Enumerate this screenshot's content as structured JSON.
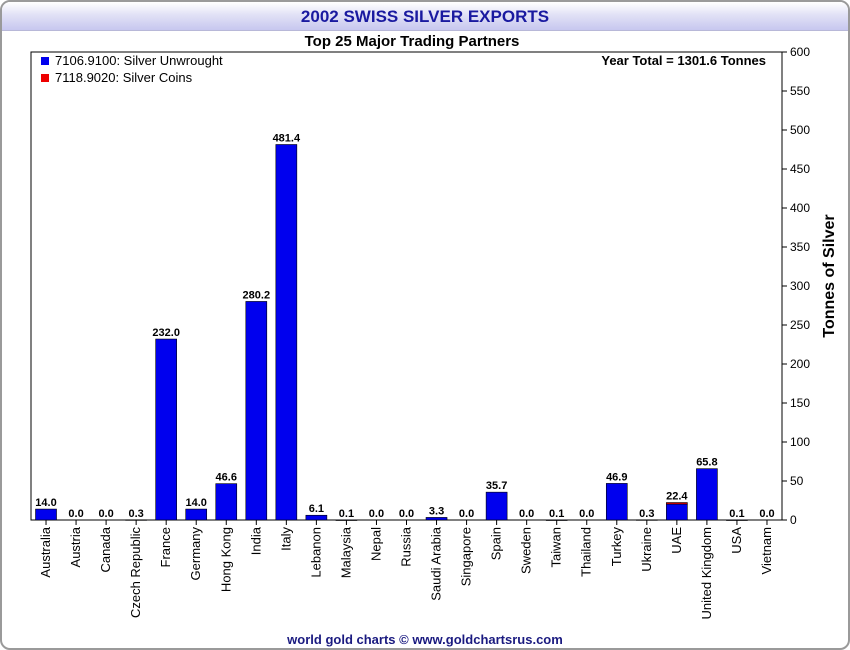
{
  "title": "2002 SWISS SILVER EXPORTS",
  "subtitle": "Top 25 Major Trading Partners",
  "credit": "world gold charts © www.goldchartsrus.com",
  "annotation": "Year Total = 1301.6 Tonnes",
  "colors": {
    "unwrought": "#0000ee",
    "coins": "#ee0000",
    "title": "#1a1aa0"
  },
  "chart_data": {
    "type": "bar",
    "stacked": true,
    "title": "2002 SWISS SILVER EXPORTS",
    "subtitle": "Top 25 Major Trading Partners",
    "ylabel": "Tonnes of Silver",
    "ylim": [
      0,
      600
    ],
    "yticks": [
      0,
      50,
      100,
      150,
      200,
      250,
      300,
      350,
      400,
      450,
      500,
      550,
      600
    ],
    "y_axis_side": "right",
    "legend_position": "top-left",
    "grid": false,
    "categories": [
      "Australia",
      "Austria",
      "Canada",
      "Czech Republic",
      "France",
      "Germany",
      "Hong Kong",
      "India",
      "Italy",
      "Lebanon",
      "Malaysia",
      "Nepal",
      "Russia",
      "Saudi Arabia",
      "Singapore",
      "Spain",
      "Sweden",
      "Taiwan",
      "Thailand",
      "Turkey",
      "Ukraine",
      "UAE",
      "United Kingdom",
      "USA",
      "Vietnam"
    ],
    "labels": [
      "14.0",
      "0.0",
      "0.0",
      "0.3",
      "232.0",
      "14.0",
      "46.6",
      "280.2",
      "481.4",
      "6.1",
      "0.1",
      "0.0",
      "0.0",
      "3.3",
      "0.0",
      "35.7",
      "0.0",
      "0.1",
      "0.0",
      "46.9",
      "0.3",
      "22.4",
      "65.8",
      "0.1",
      "0.0"
    ],
    "series": [
      {
        "name": "7106.9100: Silver Unwrought",
        "color": "#0000ee",
        "values": [
          14.0,
          0.0,
          0.0,
          0.3,
          232.0,
          14.0,
          46.6,
          280.2,
          481.4,
          6.1,
          0.1,
          0.0,
          0.0,
          3.3,
          0.0,
          35.7,
          0.0,
          0.1,
          0.0,
          46.9,
          0.3,
          20.4,
          65.8,
          0.1,
          0.0
        ]
      },
      {
        "name": "7118.9020: Silver Coins",
        "color": "#ee0000",
        "values": [
          0,
          0,
          0,
          0,
          0,
          0,
          0,
          0,
          0,
          0,
          0,
          0,
          0,
          0,
          0,
          0,
          0,
          0,
          0,
          0,
          0,
          2.0,
          0,
          0,
          0
        ]
      }
    ]
  }
}
